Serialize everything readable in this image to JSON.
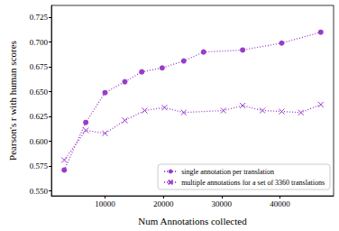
{
  "chart_data": {
    "type": "line",
    "x_label": "Num Annotations collected",
    "y_label": "Pearson's r with human scores",
    "xlim": [
      800,
      49200
    ],
    "xticks": [
      10000,
      20000,
      30000,
      40000
    ],
    "ylim": [
      0.545,
      0.737
    ],
    "yticks": [
      {
        "value": 0.55,
        "label": "0.550"
      },
      {
        "value": 0.575,
        "label": "0.575"
      },
      {
        "value": 0.6,
        "label": "0.600"
      },
      {
        "value": 0.625,
        "label": "0.625"
      },
      {
        "value": 0.65,
        "label": "0.650"
      },
      {
        "value": 0.675,
        "label": "0.675"
      },
      {
        "value": 0.7,
        "label": "0.700"
      },
      {
        "value": 0.725,
        "label": "0.725"
      }
    ],
    "grid": false,
    "legend": "lower right",
    "series": [
      {
        "name": "single annotation per translation",
        "color": "#9a3cc8",
        "marker": "circle",
        "line_style": "dotted",
        "x": [
          3000,
          6700,
          10000,
          13400,
          16300,
          19800,
          23500,
          26900,
          33600,
          40300,
          47000
        ],
        "values": [
          0.571,
          0.619,
          0.649,
          0.66,
          0.67,
          0.674,
          0.681,
          0.69,
          0.692,
          0.699,
          0.71
        ]
      },
      {
        "name": "multiple annotations for a set of 3360 translations",
        "color": "#9a3cc8",
        "marker": "x",
        "line_style": "dotted",
        "x": [
          3000,
          6700,
          10000,
          13400,
          16800,
          20200,
          23500,
          30300,
          33600,
          37000,
          40300,
          43600,
          47000
        ],
        "values": [
          0.581,
          0.611,
          0.608,
          0.621,
          0.631,
          0.634,
          0.629,
          0.631,
          0.636,
          0.631,
          0.63,
          0.629,
          0.637
        ]
      }
    ]
  }
}
